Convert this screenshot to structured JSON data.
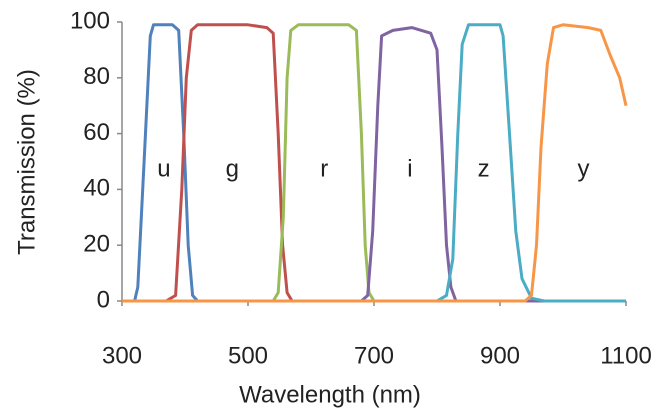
{
  "chart_data": {
    "type": "line",
    "x_label": "Wavelength (nm)",
    "y_label": "Transmission (%)",
    "xlim": [
      300,
      1100
    ],
    "xticks": [
      300,
      500,
      700,
      900,
      1100
    ],
    "ylim": [
      0,
      100
    ],
    "yticks": [
      0,
      20,
      40,
      60,
      80,
      100
    ],
    "grid": false,
    "series": [
      {
        "name": "u",
        "color": "#4f81bd",
        "x": [
          300,
          320,
          325,
          335,
          345,
          350,
          380,
          390,
          398,
          405,
          412,
          420,
          1100
        ],
        "values": [
          0,
          0,
          5,
          50,
          95,
          99,
          99,
          97,
          60,
          20,
          2,
          0,
          0
        ]
      },
      {
        "name": "g",
        "color": "#c0504d",
        "x": [
          300,
          370,
          385,
          395,
          402,
          410,
          420,
          500,
          530,
          540,
          548,
          555,
          562,
          570,
          1100
        ],
        "values": [
          0,
          0,
          2,
          40,
          80,
          97,
          99,
          99,
          98,
          96,
          60,
          20,
          3,
          0,
          0
        ]
      },
      {
        "name": "r",
        "color": "#9bbb59",
        "x": [
          300,
          540,
          548,
          556,
          562,
          568,
          580,
          660,
          672,
          680,
          686,
          692,
          700,
          1100
        ],
        "values": [
          0,
          0,
          3,
          30,
          80,
          97,
          99,
          99,
          97,
          60,
          20,
          3,
          0,
          0
        ]
      },
      {
        "name": "i",
        "color": "#8064a2",
        "x": [
          300,
          680,
          690,
          698,
          706,
          712,
          730,
          760,
          790,
          800,
          808,
          815,
          822,
          830,
          1100
        ],
        "values": [
          0,
          0,
          2,
          25,
          70,
          95,
          97,
          98,
          96,
          90,
          55,
          20,
          5,
          0,
          0
        ]
      },
      {
        "name": "z",
        "color": "#4bacc6",
        "x": [
          300,
          800,
          815,
          825,
          833,
          840,
          850,
          900,
          905,
          915,
          925,
          935,
          950,
          970,
          1100
        ],
        "values": [
          0,
          0,
          2,
          15,
          60,
          92,
          99,
          99,
          95,
          60,
          25,
          8,
          1,
          0,
          0
        ]
      },
      {
        "name": "y",
        "color": "#f79646",
        "x": [
          300,
          940,
          950,
          958,
          965,
          975,
          985,
          1000,
          1040,
          1060,
          1075,
          1090,
          1100
        ],
        "values": [
          0,
          0,
          2,
          20,
          55,
          85,
          98,
          99,
          98,
          97,
          88,
          80,
          70
        ]
      }
    ]
  }
}
